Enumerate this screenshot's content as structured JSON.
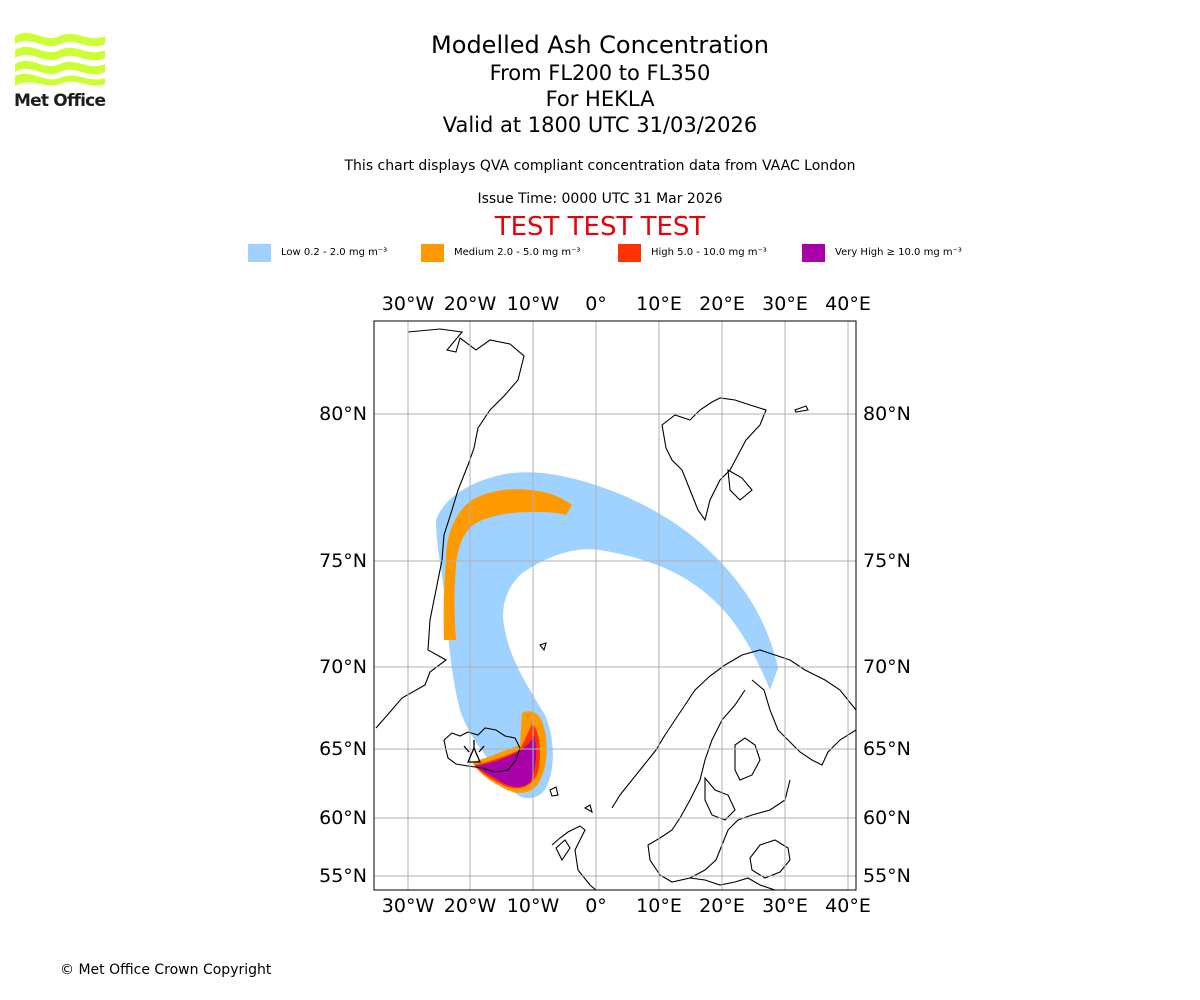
{
  "logo": {
    "text": "Met Office"
  },
  "header": {
    "title": "Modelled Ash Concentration",
    "levels": "From FL200 to FL350",
    "volcano": "For HEKLA",
    "valid": "Valid at 1800 UTC 31/03/2026",
    "description": "This chart displays QVA compliant concentration data from VAAC London",
    "issue_time": "Issue Time: 0000 UTC 31 Mar 2026",
    "test_banner": "TEST TEST TEST"
  },
  "legend": [
    {
      "label": "Low 0.2 - 2.0 mg m⁻³",
      "color": "#a0d2ff"
    },
    {
      "label": "Medium 2.0 - 5.0 mg m⁻³",
      "color": "#ff9900"
    },
    {
      "label": "High 5.0 - 10.0 mg m⁻³",
      "color": "#ff3300"
    },
    {
      "label": "Very High ≥ 10.0 mg m⁻³",
      "color": "#aa00aa"
    }
  ],
  "map": {
    "lon_labels": [
      "30°W",
      "20°W",
      "10°W",
      "0°",
      "10°E",
      "20°E",
      "30°E",
      "40°E"
    ],
    "lat_labels": [
      "80°N",
      "75°N",
      "70°N",
      "65°N",
      "60°N",
      "55°N"
    ]
  },
  "footer": {
    "copyright": "© Met Office Crown Copyright"
  }
}
